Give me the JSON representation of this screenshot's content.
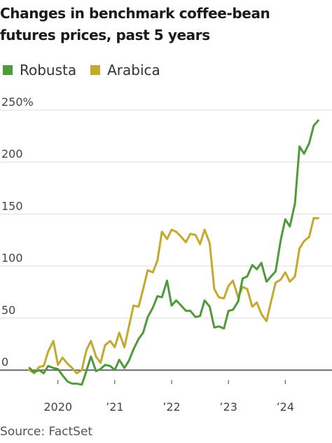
{
  "title": "Changes in benchmark coffee-bean futures prices, past 5 years",
  "source": "Source: FactSet",
  "colors": {
    "robusta": "#4f9a3a",
    "arabica": "#c4a92f",
    "grid": "#dddddd",
    "zero": "#222222",
    "tick": "#444444"
  },
  "chart_data": {
    "type": "line",
    "title": "Changes in benchmark coffee-bean futures prices, past 5 years",
    "xlabel": "",
    "ylabel": "",
    "ylim": [
      -20,
      250
    ],
    "xlim": [
      2019.4,
      2024.6
    ],
    "y_ticks": [
      {
        "value": 0,
        "label": "0"
      },
      {
        "value": 50,
        "label": "50"
      },
      {
        "value": 100,
        "label": "100"
      },
      {
        "value": 150,
        "label": "150"
      },
      {
        "value": 200,
        "label": "200"
      },
      {
        "value": 250,
        "label": "250%"
      }
    ],
    "x_ticks": [
      {
        "value": 2020,
        "label": "2020"
      },
      {
        "value": 2021,
        "label": "’21"
      },
      {
        "value": 2022,
        "label": "’22"
      },
      {
        "value": 2023,
        "label": "’23"
      },
      {
        "value": 2024,
        "label": "’24"
      }
    ],
    "grid": true,
    "legend_position": "top-left",
    "series": [
      {
        "name": "Robusta",
        "color": "#4f9a3a",
        "x": [
          2019.5,
          2019.58,
          2019.67,
          2019.75,
          2019.83,
          2019.92,
          2020.0,
          2020.08,
          2020.17,
          2020.25,
          2020.33,
          2020.42,
          2020.5,
          2020.58,
          2020.67,
          2020.75,
          2020.83,
          2020.92,
          2021.0,
          2021.08,
          2021.17,
          2021.25,
          2021.33,
          2021.42,
          2021.5,
          2021.58,
          2021.67,
          2021.75,
          2021.83,
          2021.92,
          2022.0,
          2022.08,
          2022.17,
          2022.25,
          2022.33,
          2022.42,
          2022.5,
          2022.58,
          2022.67,
          2022.75,
          2022.83,
          2022.92,
          2023.0,
          2023.08,
          2023.17,
          2023.25,
          2023.33,
          2023.42,
          2023.5,
          2023.58,
          2023.67,
          2023.75,
          2023.83,
          2023.92,
          2024.0,
          2024.08,
          2024.17,
          2024.25,
          2024.33,
          2024.42,
          2024.5,
          2024.58
        ],
        "y": [
          2,
          -2,
          0,
          -3,
          4,
          2,
          1,
          -5,
          -11,
          -13,
          -13,
          -14,
          -1,
          13,
          -1,
          1,
          5,
          4,
          0,
          10,
          2,
          9,
          20,
          30,
          36,
          51,
          60,
          71,
          70,
          86,
          62,
          67,
          62,
          57,
          57,
          51,
          52,
          67,
          61,
          41,
          42,
          40,
          57,
          58,
          66,
          88,
          90,
          101,
          97,
          103,
          85,
          90,
          95,
          125,
          145,
          138,
          160,
          215,
          208,
          218,
          235,
          240
        ]
      },
      {
        "name": "Arabica",
        "color": "#c4a92f",
        "x": [
          2019.5,
          2019.58,
          2019.67,
          2019.75,
          2019.83,
          2019.92,
          2020.0,
          2020.08,
          2020.17,
          2020.25,
          2020.33,
          2020.42,
          2020.5,
          2020.58,
          2020.67,
          2020.75,
          2020.83,
          2020.92,
          2021.0,
          2021.08,
          2021.17,
          2021.25,
          2021.33,
          2021.42,
          2021.5,
          2021.58,
          2021.67,
          2021.75,
          2021.83,
          2021.92,
          2022.0,
          2022.08,
          2022.17,
          2022.25,
          2022.33,
          2022.42,
          2022.5,
          2022.58,
          2022.67,
          2022.75,
          2022.83,
          2022.92,
          2023.0,
          2023.08,
          2023.17,
          2023.25,
          2023.33,
          2023.42,
          2023.5,
          2023.58,
          2023.67,
          2023.75,
          2023.83,
          2023.92,
          2024.0,
          2024.08,
          2024.17,
          2024.25,
          2024.33,
          2024.42,
          2024.5,
          2024.58
        ],
        "y": [
          0,
          -3,
          3,
          4,
          18,
          28,
          5,
          12,
          6,
          2,
          -3,
          0,
          19,
          28,
          13,
          7,
          24,
          28,
          22,
          36,
          22,
          42,
          62,
          61,
          78,
          96,
          94,
          105,
          133,
          126,
          135,
          133,
          128,
          123,
          131,
          130,
          121,
          135,
          122,
          78,
          70,
          69,
          81,
          86,
          70,
          80,
          78,
          61,
          65,
          54,
          47,
          66,
          84,
          87,
          94,
          85,
          90,
          117,
          124,
          128,
          146,
          146
        ]
      }
    ]
  }
}
